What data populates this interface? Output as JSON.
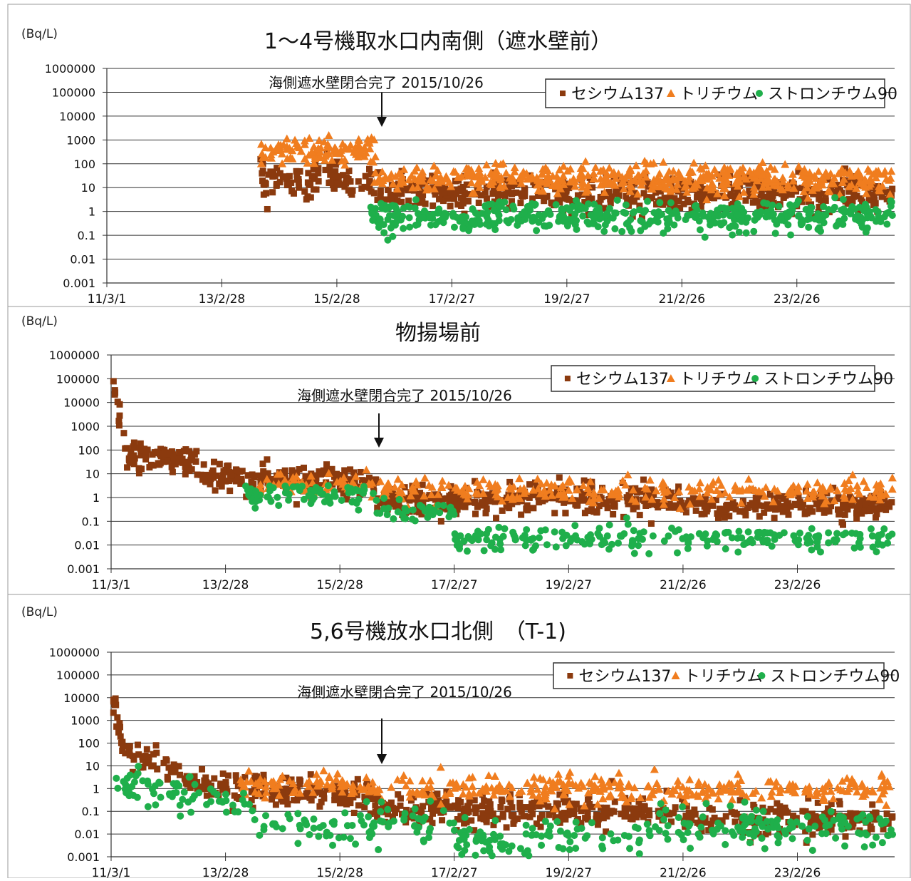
{
  "chart_data": [
    {
      "type": "scatter",
      "title": "1～4号機取水口内南側（遮水壁前）",
      "unit": "(Bq/L)",
      "y_scale": "log",
      "ylim": [
        0.001,
        1000000
      ],
      "y_ticks": [
        "1000000",
        "100000",
        "10000",
        "1000",
        "100",
        "10",
        "1",
        "0.1",
        "0.01",
        "0.001"
      ],
      "x_ticks": [
        "11/3/1",
        "13/2/28",
        "15/2/28",
        "17/2/27",
        "19/2/27",
        "21/2/26",
        "23/2/26"
      ],
      "annotation": "海側遮水壁閉合完了 2015/10/26",
      "legend": [
        "セシウム137",
        "トリチウム",
        "ストロンチウム90"
      ],
      "legend_position": "top-right",
      "series": [
        {
          "name": "セシウム137",
          "marker": "square",
          "color": "#8B3A0E",
          "x_range": [
            "13/11",
            "24/11"
          ],
          "typical_values": [
            15,
            20,
            5,
            7
          ]
        },
        {
          "name": "トリチウム",
          "marker": "triangle",
          "color": "#F07D1F",
          "x_range": [
            "13/11",
            "24/11"
          ],
          "typical_values": [
            300,
            400,
            25,
            25
          ]
        },
        {
          "name": "ストロンチウム90",
          "marker": "circle",
          "color": "#1FAF4B",
          "x_range": [
            "15/10",
            "24/11"
          ],
          "typical_values": [
            0.5,
            1,
            0.6,
            0.8
          ]
        }
      ]
    },
    {
      "type": "scatter",
      "title": "物揚場前",
      "unit": "(Bq/L)",
      "y_scale": "log",
      "ylim": [
        0.001,
        1000000
      ],
      "y_ticks": [
        "1000000",
        "100000",
        "10000",
        "1000",
        "100",
        "10",
        "1",
        "0.1",
        "0.01",
        "0.001"
      ],
      "x_ticks": [
        "11/3/1",
        "13/2/28",
        "15/2/28",
        "17/2/27",
        "19/2/27",
        "21/2/26",
        "23/2/26"
      ],
      "annotation": "海側遮水壁閉合完了 2015/10/26",
      "legend": [
        "セシウム137",
        "トリチウム",
        "ストロンチウム90"
      ],
      "legend_position": "top-right",
      "series": [
        {
          "name": "セシウム137",
          "marker": "square",
          "color": "#8B3A0E",
          "x_range": [
            "11/3",
            "24/11"
          ],
          "typical_values": [
            500000,
            60,
            4,
            0.8,
            0.4
          ]
        },
        {
          "name": "トリチウム",
          "marker": "triangle",
          "color": "#F07D1F",
          "x_range": [
            "13/10",
            "24/11"
          ],
          "typical_values": [
            5,
            3,
            2,
            1.5
          ]
        },
        {
          "name": "ストロンチウム90",
          "marker": "circle",
          "color": "#1FAF4B",
          "x_range": [
            "13/6",
            "24/11"
          ],
          "typical_values": [
            3,
            0.5,
            0.02,
            0.015
          ]
        }
      ]
    },
    {
      "type": "scatter",
      "title": "5,6号機放水口北側　（T-1)",
      "unit": "(Bq/L)",
      "y_scale": "log",
      "ylim": [
        0.001,
        1000000
      ],
      "y_ticks": [
        "1000000",
        "100000",
        "10000",
        "1000",
        "100",
        "10",
        "1",
        "0.1",
        "0.01",
        "0.001"
      ],
      "x_ticks": [
        "11/3/1",
        "13/2/28",
        "15/2/28",
        "17/2/27",
        "19/2/27",
        "21/2/26",
        "23/2/26"
      ],
      "annotation": "海側遮水壁閉合完了 2015/10/26",
      "legend": [
        "セシウム137",
        "トリチウム",
        "ストロンチウム90"
      ],
      "legend_position": "top-right",
      "series": [
        {
          "name": "セシウム137",
          "marker": "square",
          "color": "#8B3A0E",
          "x_range": [
            "11/3",
            "24/11"
          ],
          "typical_values": [
            20000,
            10,
            1,
            0.1,
            0.05
          ]
        },
        {
          "name": "トリチウム",
          "marker": "triangle",
          "color": "#F07D1F",
          "x_range": [
            "13/6",
            "24/11"
          ],
          "typical_values": [
            2,
            1.5,
            0.8,
            0.5
          ]
        },
        {
          "name": "ストロンチウム90",
          "marker": "circle",
          "color": "#1FAF4B",
          "x_range": [
            "11/4",
            "24/11"
          ],
          "typical_values": [
            5,
            0.3,
            0.005,
            0.01
          ]
        }
      ]
    }
  ]
}
